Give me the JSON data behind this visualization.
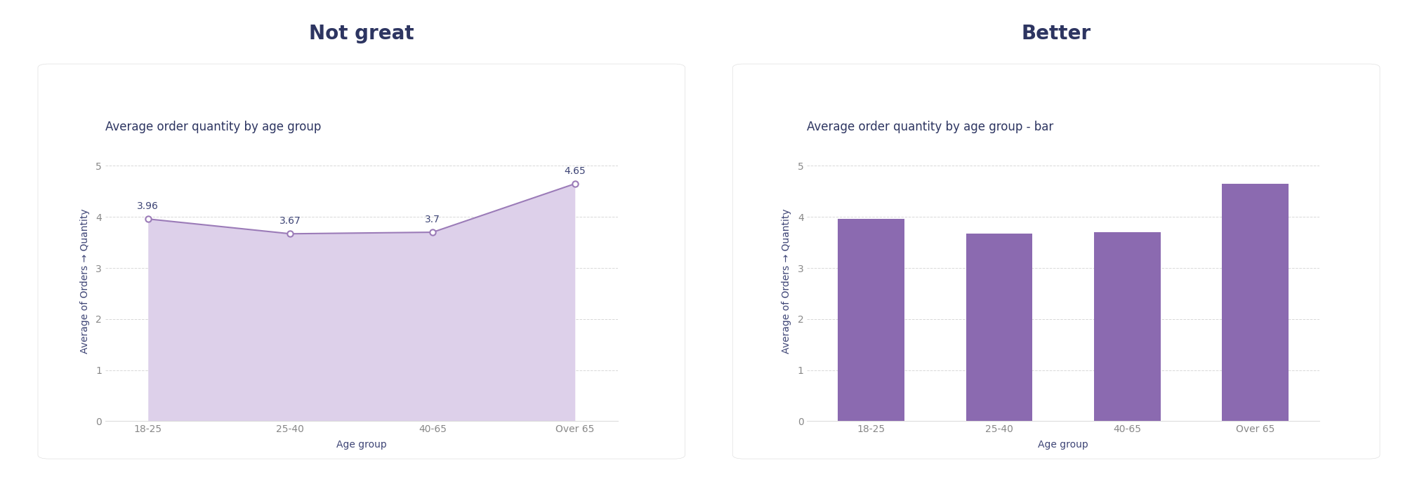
{
  "categories": [
    "18-25",
    "25-40",
    "40-65",
    "Over 65"
  ],
  "values": [
    3.96,
    3.67,
    3.7,
    4.65
  ],
  "title_left": "Not great",
  "title_right": "Better",
  "chart_title_left": "Average order quantity by age group",
  "chart_title_right": "Average order quantity by age group - bar",
  "xlabel": "Age group",
  "ylabel": "Average of Orders → Quantity",
  "ylim": [
    0,
    5.5
  ],
  "yticks": [
    0,
    1,
    2,
    3,
    4,
    5
  ],
  "line_color": "#9b7bb8",
  "area_color": "#ddd0ea",
  "bar_color": "#8b6ab0",
  "marker_face_color": "#ffffff",
  "marker_edge_color": "#9b7bb8",
  "annotation_color": "#3d4475",
  "title_color": "#2d3561",
  "chart_title_color": "#2d3561",
  "axis_label_color": "#3d4475",
  "tick_color": "#888888",
  "grid_color": "#d8d8d8",
  "background_color": "#ffffff",
  "panel_bg_color": "#f7f7fb",
  "title_fontsize": 20,
  "chart_title_fontsize": 12,
  "label_fontsize": 10,
  "tick_fontsize": 10,
  "annotation_fontsize": 10
}
